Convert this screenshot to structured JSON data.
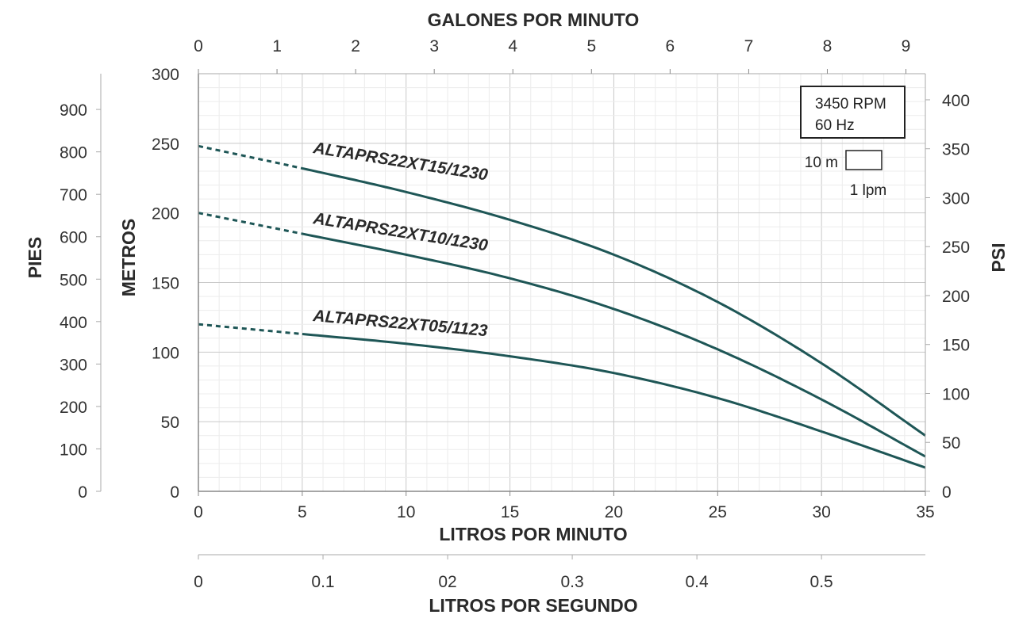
{
  "chart_data": {
    "type": "line",
    "x_primary": {
      "label": "LITROS POR MINUTO",
      "range": [
        0,
        35
      ],
      "ticks": [
        "0",
        "5",
        "10",
        "15",
        "20",
        "25",
        "30",
        "35"
      ]
    },
    "x_top": {
      "label": "GALONES POR MINUTO",
      "ticks": [
        "0",
        "1",
        "2",
        "3",
        "4",
        "5",
        "6",
        "7",
        "8",
        "9"
      ]
    },
    "x_bottom2": {
      "label": "LITROS POR SEGUNDO",
      "ticks": [
        "0",
        "0.1",
        "02",
        "0.3",
        "0.4",
        "0.5"
      ]
    },
    "y_primary": {
      "label": "METROS",
      "range": [
        0,
        300
      ],
      "ticks": [
        "0",
        "50",
        "100",
        "150",
        "200",
        "250",
        "300"
      ]
    },
    "y_left_outer": {
      "label": "PIES",
      "ticks": [
        "0",
        "100",
        "200",
        "300",
        "400",
        "500",
        "600",
        "700",
        "800",
        "900"
      ]
    },
    "y_right": {
      "label": "PSI",
      "ticks": [
        "0",
        "50",
        "100",
        "150",
        "200",
        "250",
        "300",
        "350",
        "400"
      ]
    },
    "grid": true,
    "series": [
      {
        "name": "ALTAPRS22XT15/1230",
        "dashed_until": 5,
        "x": [
          0,
          5,
          10,
          15,
          20,
          25,
          30,
          35
        ],
        "y": [
          248,
          232,
          215,
          195,
          170,
          136,
          92,
          40
        ]
      },
      {
        "name": "ALTAPRS22XT10/1230",
        "dashed_until": 5,
        "x": [
          0,
          5,
          10,
          15,
          20,
          25,
          30,
          35
        ],
        "y": [
          200,
          185,
          170,
          153,
          131,
          102,
          66,
          25
        ]
      },
      {
        "name": "ALTAPRS22XT05/1123",
        "dashed_until": 5,
        "x": [
          0,
          5,
          10,
          15,
          20,
          25,
          30,
          35
        ],
        "y": [
          120,
          113,
          106,
          97,
          85,
          67,
          43,
          17
        ]
      }
    ],
    "annotations": {
      "rpm": "3450 RPM",
      "hz": "60 Hz",
      "scale_m": "10 m",
      "scale_lpm": "1 lpm"
    },
    "colors": {
      "line": "#1e5656",
      "grid_major": "#c9c9c9",
      "grid_minor": "#ececec",
      "text": "#2a2a2a"
    }
  }
}
